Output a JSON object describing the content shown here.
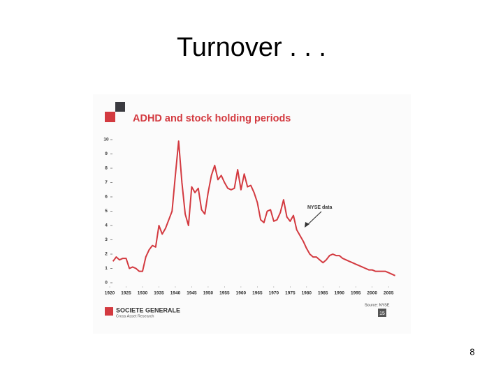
{
  "slide_title": "Turnover . . .",
  "slide_number": "8",
  "chart_data": {
    "type": "line",
    "title": "ADHD and stock holding periods",
    "annotation": "NYSE data",
    "source": "Source: NYSE",
    "logo": "SOCIETE GENERALE",
    "logo_subtitle": "Cross Asset Research",
    "page": "15",
    "color": "#d33a40",
    "x": [
      1921,
      1922,
      1923,
      1924,
      1925,
      1926,
      1927,
      1928,
      1929,
      1930,
      1931,
      1932,
      1933,
      1934,
      1935,
      1936,
      1937,
      1938,
      1939,
      1940,
      1941,
      1942,
      1943,
      1944,
      1945,
      1946,
      1947,
      1948,
      1949,
      1950,
      1951,
      1952,
      1953,
      1954,
      1955,
      1956,
      1957,
      1958,
      1959,
      1960,
      1961,
      1962,
      1963,
      1964,
      1965,
      1966,
      1967,
      1968,
      1969,
      1970,
      1971,
      1972,
      1973,
      1974,
      1975,
      1976,
      1977,
      1978,
      1979,
      1980,
      1981,
      1982,
      1983,
      1984,
      1985,
      1986,
      1987,
      1988,
      1989,
      1990,
      1991,
      1992,
      1993,
      1994,
      1995,
      1996,
      1997,
      1998,
      1999,
      2000,
      2001,
      2002,
      2003,
      2004,
      2005,
      2006,
      2007
    ],
    "values": [
      1.5,
      1.8,
      1.6,
      1.7,
      1.7,
      1.0,
      1.1,
      1.0,
      0.8,
      0.8,
      1.8,
      2.3,
      2.6,
      2.5,
      4.0,
      3.4,
      3.8,
      4.4,
      5.0,
      7.5,
      9.9,
      7.0,
      4.8,
      4.0,
      6.7,
      6.3,
      6.6,
      5.1,
      4.8,
      6.3,
      7.5,
      8.2,
      7.2,
      7.5,
      7.0,
      6.6,
      6.5,
      6.6,
      7.9,
      6.5,
      7.6,
      6.7,
      6.8,
      6.3,
      5.6,
      4.4,
      4.2,
      5.0,
      5.1,
      4.3,
      4.4,
      4.9,
      5.8,
      4.6,
      4.3,
      4.7,
      3.7,
      3.3,
      2.9,
      2.4,
      2.0,
      1.8,
      1.8,
      1.6,
      1.4,
      1.6,
      1.9,
      2.0,
      1.9,
      1.9,
      1.7,
      1.6,
      1.5,
      1.4,
      1.3,
      1.2,
      1.1,
      1.0,
      0.9,
      0.9,
      0.8,
      0.8,
      0.8,
      0.8,
      0.7,
      0.6,
      0.5
    ],
    "xlim": [
      1918.5,
      2009
    ],
    "xticks": [
      1920,
      1925,
      1930,
      1935,
      1940,
      1945,
      1950,
      1955,
      1960,
      1965,
      1970,
      1975,
      1980,
      1985,
      1990,
      1995,
      2000,
      2005
    ],
    "ylim": [
      0,
      10
    ],
    "yticks": [
      0,
      1,
      2,
      3,
      4,
      5,
      6,
      7,
      8,
      9,
      10
    ]
  }
}
